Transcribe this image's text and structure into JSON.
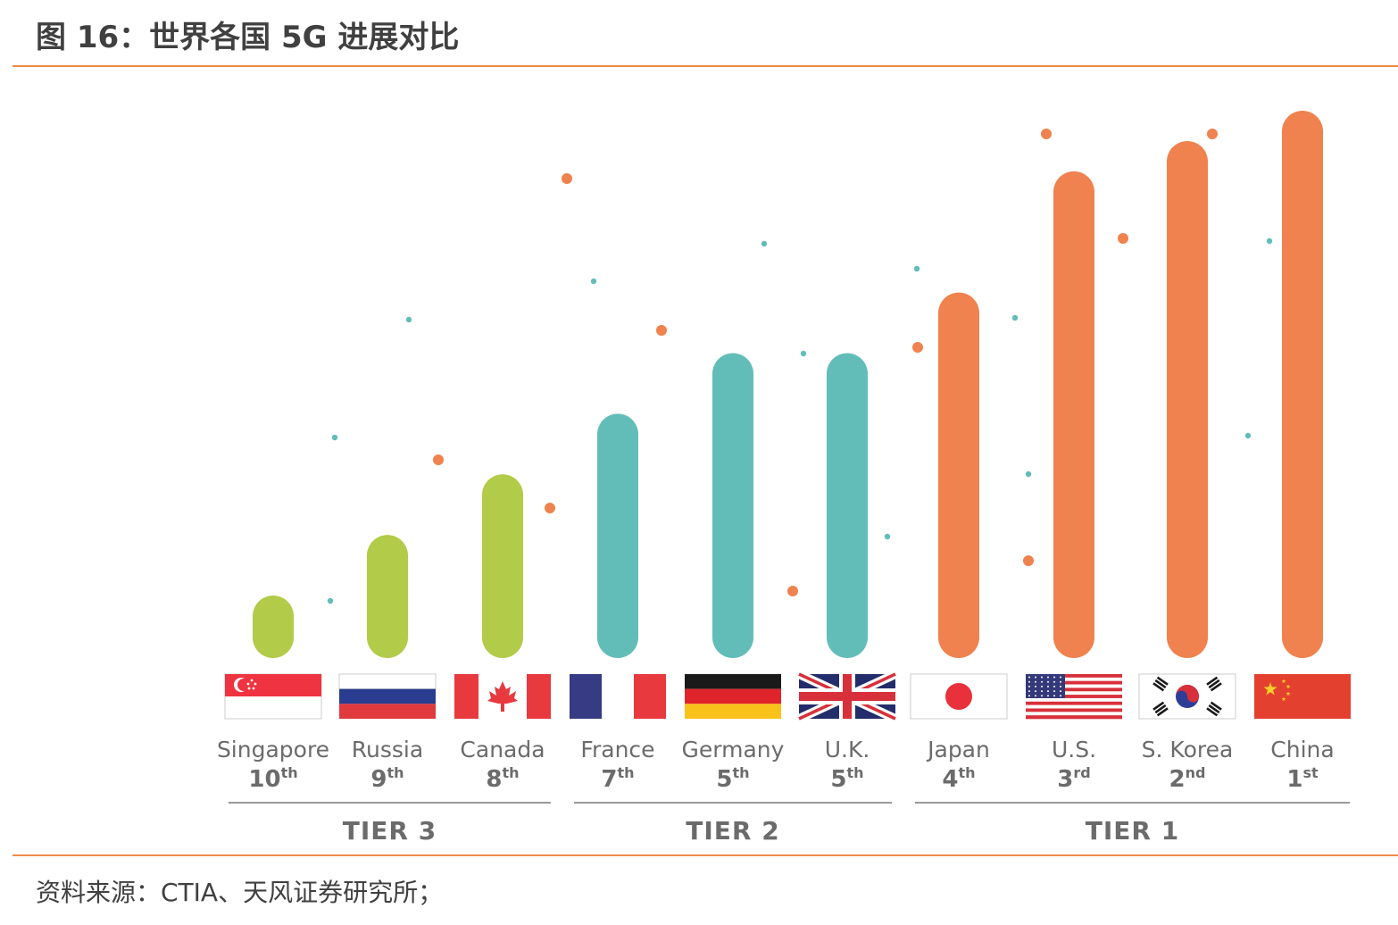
{
  "figure": {
    "title": "图 16：世界各国 5G 进展对比",
    "source": "资料来源：CTIA、天风证券研究所；"
  },
  "chart_data": {
    "type": "bar",
    "categories": [
      "Singapore",
      "Russia",
      "Canada",
      "France",
      "Germany",
      "U.K.",
      "Japan",
      "U.S.",
      "S. Korea",
      "China"
    ],
    "ranks": [
      {
        "num": "10",
        "suffix": "th"
      },
      {
        "num": "9",
        "suffix": "th"
      },
      {
        "num": "8",
        "suffix": "th"
      },
      {
        "num": "7",
        "suffix": "th"
      },
      {
        "num": "5",
        "suffix": "th"
      },
      {
        "num": "5",
        "suffix": "th"
      },
      {
        "num": "4",
        "suffix": "th"
      },
      {
        "num": "3",
        "suffix": "rd"
      },
      {
        "num": "2",
        "suffix": "nd"
      },
      {
        "num": "1",
        "suffix": "st"
      }
    ],
    "values": [
      1,
      2,
      3,
      4,
      5,
      5,
      6,
      8,
      8.5,
      9
    ],
    "tiers": [
      {
        "label": "TIER 3",
        "members": [
          0,
          1,
          2
        ],
        "color": "#B2CB48"
      },
      {
        "label": "TIER 2",
        "members": [
          3,
          4,
          5
        ],
        "color": "#62BDB8"
      },
      {
        "label": "TIER 1",
        "members": [
          6,
          7,
          8,
          9
        ],
        "color": "#EF824E"
      }
    ],
    "ylim": [
      0,
      9
    ],
    "grid": false,
    "legend": "none"
  }
}
